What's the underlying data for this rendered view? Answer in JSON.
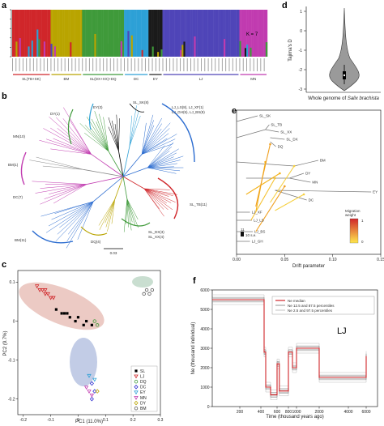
{
  "panels": {
    "a": {
      "label": "a",
      "k_label": "K = 7",
      "groups": [
        {
          "name": "SL(TB+SK)",
          "color": "#d0262a"
        },
        {
          "name": "BM",
          "color": "#b9a400"
        },
        {
          "name": "SL(DX+XX)+DQ",
          "color": "#3f9a3a"
        },
        {
          "name": "DC",
          "color": "#2da0d6"
        },
        {
          "name": "EY",
          "color": "#1a1a1a"
        },
        {
          "name": "LJ",
          "color": "#4f45b8"
        },
        {
          "name": "MN",
          "color": "#c13bb0"
        }
      ],
      "y_ticks": [
        "1.0",
        "0.8",
        "0.6",
        "0.4",
        "0.2",
        "0.0"
      ]
    },
    "b": {
      "label": "b",
      "scale": "0.03",
      "clade_labels": [
        "EY(3)",
        "DY(1)",
        "MN(10)",
        "BM(1)",
        "DC(7)",
        "BM(11)",
        "DQ(4)",
        "SL_SK(8)",
        "LJ_LS(8), LJ_XF(1)",
        "LJ_GH(5), LJ_BS(8)",
        "SL_TB(11)",
        "SL_DX(3)",
        "SL_XX(4)"
      ]
    },
    "c": {
      "label": "c",
      "xlabel": "PC1 (11.0%)",
      "ylabel": "PC2 (9.7%)",
      "x_ticks": [
        "-0.2",
        "-0.1",
        "0",
        "0.1",
        "0.2",
        "0.3"
      ],
      "y_ticks": [
        "0.1",
        "0",
        "-0.1",
        "-0.2"
      ],
      "legend": [
        {
          "label": "SL",
          "color": "#000000",
          "mark": "square"
        },
        {
          "label": "LJ",
          "color": "#d0262a",
          "mark": "tri"
        },
        {
          "label": "DQ",
          "color": "#3f9a3a",
          "mark": "circle"
        },
        {
          "label": "DC",
          "color": "#2b2bd0",
          "mark": "diamond"
        },
        {
          "label": "EY",
          "color": "#2da0d6",
          "mark": "tri"
        },
        {
          "label": "MN",
          "color": "#c13bb0",
          "mark": "tri"
        },
        {
          "label": "DY",
          "color": "#b9a400",
          "mark": "diamond"
        },
        {
          "label": "BM",
          "color": "#5a5a5a",
          "mark": "circle"
        }
      ]
    },
    "d": {
      "label": "d",
      "ylabel": "Tajima's D",
      "y_ticks": [
        "1",
        "0",
        "-1",
        "-2",
        "-3"
      ],
      "xlabel_prefix": "Whole genome of ",
      "xlabel_species": "Salix brachista"
    },
    "e": {
      "label": "e",
      "xlabel": "Drift parameter",
      "x_ticks": [
        "0.00",
        "0.05",
        "0.10",
        "0.15"
      ],
      "leaves": [
        "SL_SK",
        "SL_TB",
        "SL_XX",
        "SL_DX",
        "DQ",
        "BM",
        "DY",
        "MN",
        "EY",
        "DC",
        "LJ_XF",
        "LJ_LS",
        "LJ_BS",
        "LJ_GH"
      ],
      "migration_title": "Migration\nweight",
      "migration_max": "1",
      "migration_min": "0",
      "se_label_1": "11",
      "se_label_2": "10 s.e."
    },
    "f": {
      "label": "f",
      "ylabel": "Ne (thousand individual)",
      "xlabel": "Time (thousand years ago)",
      "y_ticks": [
        "6000",
        "5000",
        "4000",
        "3000",
        "2000",
        "1000",
        "0"
      ],
      "x_ticks": [
        "200",
        "400",
        "600",
        "800",
        "1000",
        "2000",
        "4000",
        "6000"
      ],
      "pop_label": "LJ",
      "legend": [
        "Ne median",
        "Ne 12.5 and 87.5 percentiles",
        "Ne 2.5 and 97.5 percentiles"
      ]
    }
  },
  "chart_data": [
    {
      "panel": "c",
      "type": "scatter",
      "xlabel": "PC1 (11.0%)",
      "ylabel": "PC2 (9.7%)",
      "xlim": [
        -0.22,
        0.3
      ],
      "ylim": [
        -0.24,
        0.13
      ],
      "series": [
        {
          "name": "SL",
          "points": [
            [
              -0.08,
              0.03
            ],
            [
              -0.06,
              0.02
            ],
            [
              -0.05,
              0.02
            ],
            [
              -0.03,
              0.01
            ],
            [
              -0.01,
              0.0
            ],
            [
              0.0,
              0.01
            ],
            [
              0.02,
              -0.01
            ],
            [
              0.03,
              0.0
            ],
            [
              0.05,
              -0.01
            ],
            [
              -0.04,
              0.02
            ]
          ]
        },
        {
          "name": "LJ",
          "points": [
            [
              -0.15,
              0.09
            ],
            [
              -0.14,
              0.08
            ],
            [
              -0.13,
              0.08
            ],
            [
              -0.12,
              0.07
            ],
            [
              -0.11,
              0.07
            ],
            [
              -0.1,
              0.06
            ],
            [
              -0.09,
              0.06
            ],
            [
              -0.12,
              0.08
            ]
          ]
        },
        {
          "name": "DQ",
          "points": [
            [
              0.06,
              0.0
            ],
            [
              0.07,
              -0.01
            ]
          ]
        },
        {
          "name": "DC",
          "points": [
            [
              0.05,
              -0.16
            ],
            [
              0.06,
              -0.18
            ],
            [
              0.05,
              -0.2
            ]
          ]
        },
        {
          "name": "EY",
          "points": [
            [
              0.04,
              -0.14
            ],
            [
              0.06,
              -0.15
            ]
          ]
        },
        {
          "name": "MN",
          "points": [
            [
              0.03,
              -0.17
            ],
            [
              0.05,
              -0.19
            ],
            [
              0.04,
              -0.18
            ]
          ]
        },
        {
          "name": "DY",
          "points": [
            [
              0.07,
              -0.18
            ]
          ]
        },
        {
          "name": "BM",
          "points": [
            [
              0.24,
              0.07
            ],
            [
              0.25,
              0.08
            ],
            [
              0.26,
              0.07
            ],
            [
              0.27,
              0.08
            ]
          ]
        }
      ]
    },
    {
      "panel": "f",
      "type": "line",
      "xlabel": "Time (thousand years ago)",
      "ylabel": "Ne (thousand individual)",
      "ylim": [
        0,
        6000
      ],
      "series": [
        {
          "name": "Ne median",
          "x": [
            0,
            400,
            440,
            460,
            520,
            600,
            640,
            800,
            900,
            1000,
            2000,
            4000,
            6000
          ],
          "y": [
            5500,
            5500,
            2800,
            1000,
            600,
            2200,
            800,
            2800,
            2000,
            3000,
            1500,
            1500,
            2600
          ]
        }
      ]
    }
  ]
}
